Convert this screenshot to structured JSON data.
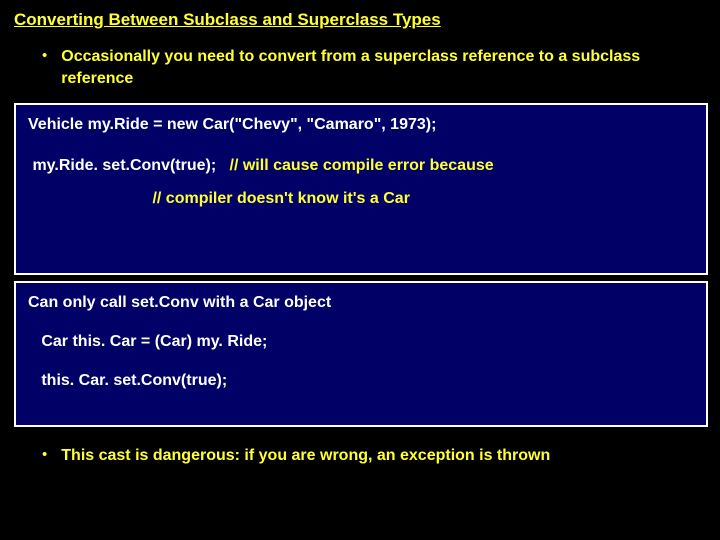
{
  "colors": {
    "background": "#000000",
    "text_primary": "#ffff33",
    "box_bg": "#000066",
    "box_border": "#ffffff",
    "code_text": "#ffffff",
    "comment_text": "#ffff33"
  },
  "typography": {
    "font_family": "Verdana, Arial, sans-serif",
    "title_fontsize": 17,
    "bullet_fontsize": 16,
    "code_fontsize": 16
  },
  "title": "Converting Between Subclass and Superclass Types",
  "bullet1": "Occasionally you need to convert from a superclass reference to a subclass reference",
  "box1": {
    "line1": "Vehicle my.Ride = new Car(\"Chevy\", \"Camaro\", 1973);",
    "line2a": " my.Ride. set.Conv(true);   ",
    "line2b": "// will cause compile error because",
    "line3": "                            // compiler doesn't know it's a Car"
  },
  "box2": {
    "line1": "Can only call set.Conv with a Car object",
    "line2": "   Car this. Car = (Car) my. Ride;",
    "line3": "   this. Car. set.Conv(true);"
  },
  "bullet2": "This cast is dangerous: if you are wrong, an exception is thrown"
}
